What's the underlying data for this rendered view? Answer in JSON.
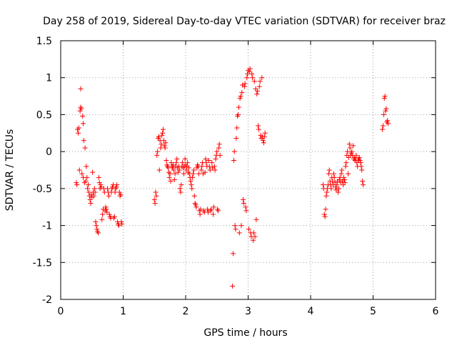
{
  "chart_data": {
    "type": "scatter",
    "title": "Day 258 of 2019, Sidereal Day-to-day VTEC variation (SDTVAR) for receiver braz",
    "xlabel": "GPS time / hours",
    "ylabel": "SDTVAR / TECUs",
    "xlim": [
      0,
      6
    ],
    "ylim": [
      -2,
      1.5
    ],
    "x_ticks": [
      0,
      1,
      2,
      3,
      4,
      5,
      6
    ],
    "x_tick_labels": [
      "0",
      "1",
      "2",
      "3",
      "4",
      "5",
      "6"
    ],
    "y_ticks": [
      1.5,
      1,
      0.5,
      0,
      -0.5,
      -1,
      -1.5,
      -2
    ],
    "y_tick_labels": [
      "1.5",
      "1",
      "0.5",
      "0",
      "-0.5",
      "-1",
      "-1.5",
      "-2"
    ],
    "grid": true,
    "marker": "+",
    "color": "#ff0000",
    "series": [
      {
        "name": "SDTVAR",
        "points": [
          [
            0.25,
            -0.42
          ],
          [
            0.26,
            -0.45
          ],
          [
            0.27,
            0.3
          ],
          [
            0.28,
            0.25
          ],
          [
            0.29,
            0.32
          ],
          [
            0.3,
            -0.25
          ],
          [
            0.31,
            0.55
          ],
          [
            0.32,
            0.6
          ],
          [
            0.32,
            0.85
          ],
          [
            0.33,
            0.58
          ],
          [
            0.34,
            -0.3
          ],
          [
            0.35,
            0.48
          ],
          [
            0.36,
            0.38
          ],
          [
            0.36,
            -0.35
          ],
          [
            0.37,
            0.15
          ],
          [
            0.38,
            -0.42
          ],
          [
            0.39,
            0.05
          ],
          [
            0.4,
            -0.4
          ],
          [
            0.41,
            -0.2
          ],
          [
            0.42,
            -0.35
          ],
          [
            0.43,
            -0.5
          ],
          [
            0.44,
            -0.45
          ],
          [
            0.45,
            -0.55
          ],
          [
            0.46,
            -0.6
          ],
          [
            0.47,
            -0.65
          ],
          [
            0.48,
            -0.7
          ],
          [
            0.49,
            -0.58
          ],
          [
            0.5,
            -0.62
          ],
          [
            0.51,
            -0.28
          ],
          [
            0.52,
            -0.55
          ],
          [
            0.53,
            -0.6
          ],
          [
            0.54,
            -0.5
          ],
          [
            0.55,
            -0.55
          ],
          [
            0.56,
            -0.95
          ],
          [
            0.57,
            -1.0
          ],
          [
            0.58,
            -1.05
          ],
          [
            0.59,
            -1.08
          ],
          [
            0.6,
            -1.1
          ],
          [
            0.61,
            -0.35
          ],
          [
            0.62,
            -0.42
          ],
          [
            0.63,
            -0.5
          ],
          [
            0.64,
            -0.45
          ],
          [
            0.65,
            -0.48
          ],
          [
            0.66,
            -0.92
          ],
          [
            0.67,
            -0.85
          ],
          [
            0.68,
            -0.78
          ],
          [
            0.69,
            -0.5
          ],
          [
            0.7,
            -0.55
          ],
          [
            0.71,
            -0.8
          ],
          [
            0.72,
            -0.75
          ],
          [
            0.73,
            -0.78
          ],
          [
            0.74,
            -0.82
          ],
          [
            0.75,
            -0.5
          ],
          [
            0.76,
            -0.55
          ],
          [
            0.77,
            -0.6
          ],
          [
            0.78,
            -0.85
          ],
          [
            0.79,
            -0.88
          ],
          [
            0.8,
            -0.9
          ],
          [
            0.81,
            -0.55
          ],
          [
            0.82,
            -0.5
          ],
          [
            0.83,
            -0.48
          ],
          [
            0.84,
            -0.45
          ],
          [
            0.85,
            -0.9
          ],
          [
            0.86,
            -0.88
          ],
          [
            0.87,
            -0.55
          ],
          [
            0.88,
            -0.5
          ],
          [
            0.89,
            -0.48
          ],
          [
            0.9,
            -0.45
          ],
          [
            0.91,
            -0.95
          ],
          [
            0.92,
            -0.98
          ],
          [
            0.93,
            -1.0
          ],
          [
            0.94,
            -0.55
          ],
          [
            0.95,
            -0.6
          ],
          [
            0.96,
            -0.58
          ],
          [
            0.97,
            -0.95
          ],
          [
            0.98,
            -0.98
          ],
          [
            1.5,
            -0.65
          ],
          [
            1.51,
            -0.7
          ],
          [
            1.52,
            -0.55
          ],
          [
            1.53,
            -0.6
          ],
          [
            1.54,
            -0.05
          ],
          [
            1.55,
            0.0
          ],
          [
            1.56,
            0.18
          ],
          [
            1.57,
            0.2
          ],
          [
            1.58,
            -0.25
          ],
          [
            1.59,
            0.15
          ],
          [
            1.6,
            0.05
          ],
          [
            1.61,
            0.1
          ],
          [
            1.62,
            0.22
          ],
          [
            1.63,
            0.25
          ],
          [
            1.64,
            0.3
          ],
          [
            1.65,
            0.15
          ],
          [
            1.66,
            0.08
          ],
          [
            1.67,
            0.05
          ],
          [
            1.68,
            0.12
          ],
          [
            1.69,
            -0.12
          ],
          [
            1.7,
            -0.18
          ],
          [
            1.71,
            -0.2
          ],
          [
            1.72,
            -0.22
          ],
          [
            1.73,
            -0.28
          ],
          [
            1.74,
            -0.35
          ],
          [
            1.75,
            -0.3
          ],
          [
            1.76,
            -0.4
          ],
          [
            1.77,
            -0.15
          ],
          [
            1.78,
            -0.2
          ],
          [
            1.79,
            -0.22
          ],
          [
            1.8,
            -0.18
          ],
          [
            1.81,
            -0.25
          ],
          [
            1.82,
            -0.38
          ],
          [
            1.83,
            -0.3
          ],
          [
            1.84,
            -0.2
          ],
          [
            1.85,
            -0.15
          ],
          [
            1.86,
            -0.1
          ],
          [
            1.87,
            -0.22
          ],
          [
            1.88,
            -0.28
          ],
          [
            1.89,
            -0.2
          ],
          [
            1.9,
            -0.25
          ],
          [
            1.91,
            -0.5
          ],
          [
            1.92,
            -0.55
          ],
          [
            1.93,
            -0.45
          ],
          [
            1.94,
            -0.2
          ],
          [
            1.95,
            -0.15
          ],
          [
            1.96,
            -0.22
          ],
          [
            1.97,
            -0.3
          ],
          [
            1.98,
            -0.2
          ],
          [
            1.99,
            -0.1
          ],
          [
            2.0,
            -0.18
          ],
          [
            2.01,
            -0.25
          ],
          [
            2.02,
            -0.2
          ],
          [
            2.03,
            -0.15
          ],
          [
            2.04,
            -0.28
          ],
          [
            2.05,
            -0.22
          ],
          [
            2.06,
            -0.3
          ],
          [
            2.07,
            -0.35
          ],
          [
            2.08,
            -0.4
          ],
          [
            2.09,
            -0.45
          ],
          [
            2.1,
            -0.5
          ],
          [
            2.11,
            -0.35
          ],
          [
            2.12,
            -0.3
          ],
          [
            2.13,
            -0.25
          ],
          [
            2.14,
            -0.6
          ],
          [
            2.15,
            -0.7
          ],
          [
            2.16,
            -0.72
          ],
          [
            2.17,
            -0.75
          ],
          [
            2.18,
            -0.22
          ],
          [
            2.19,
            -0.18
          ],
          [
            2.2,
            -0.2
          ],
          [
            2.21,
            -0.3
          ],
          [
            2.22,
            -0.8
          ],
          [
            2.23,
            -0.85
          ],
          [
            2.24,
            -0.78
          ],
          [
            2.25,
            -0.25
          ],
          [
            2.26,
            -0.2
          ],
          [
            2.27,
            -0.15
          ],
          [
            2.28,
            -0.3
          ],
          [
            2.29,
            -0.8
          ],
          [
            2.3,
            -0.82
          ],
          [
            2.31,
            -0.28
          ],
          [
            2.32,
            -0.1
          ],
          [
            2.33,
            -0.15
          ],
          [
            2.34,
            -0.2
          ],
          [
            2.35,
            -0.78
          ],
          [
            2.36,
            -0.82
          ],
          [
            2.37,
            -0.12
          ],
          [
            2.38,
            -0.2
          ],
          [
            2.39,
            -0.25
          ],
          [
            2.4,
            -0.8
          ],
          [
            2.41,
            -0.78
          ],
          [
            2.42,
            -0.15
          ],
          [
            2.43,
            -0.22
          ],
          [
            2.44,
            -0.85
          ],
          [
            2.45,
            -0.75
          ],
          [
            2.46,
            -0.2
          ],
          [
            2.47,
            -0.25
          ],
          [
            2.48,
            -0.1
          ],
          [
            2.49,
            -0.05
          ],
          [
            2.5,
            0.0
          ],
          [
            2.51,
            -0.78
          ],
          [
            2.52,
            -0.8
          ],
          [
            2.53,
            0.05
          ],
          [
            2.54,
            0.1
          ],
          [
            2.55,
            -0.05
          ],
          [
            2.75,
            -1.82
          ],
          [
            2.76,
            -1.38
          ],
          [
            2.77,
            -0.12
          ],
          [
            2.78,
            0.0
          ],
          [
            2.79,
            -1.0
          ],
          [
            2.8,
            -1.05
          ],
          [
            2.81,
            0.18
          ],
          [
            2.82,
            0.32
          ],
          [
            2.83,
            0.48
          ],
          [
            2.84,
            0.5
          ],
          [
            2.85,
            0.6
          ],
          [
            2.86,
            -1.1
          ],
          [
            2.87,
            0.72
          ],
          [
            2.88,
            0.75
          ],
          [
            2.89,
            -1.0
          ],
          [
            2.9,
            0.8
          ],
          [
            2.91,
            0.9
          ],
          [
            2.92,
            -0.65
          ],
          [
            2.93,
            -0.7
          ],
          [
            2.94,
            0.88
          ],
          [
            2.95,
            0.92
          ],
          [
            2.96,
            -0.75
          ],
          [
            2.97,
            -0.8
          ],
          [
            2.98,
            1.0
          ],
          [
            2.99,
            1.05
          ],
          [
            3.0,
            1.1
          ],
          [
            3.01,
            -1.05
          ],
          [
            3.02,
            1.08
          ],
          [
            3.03,
            1.12
          ],
          [
            3.04,
            -1.1
          ],
          [
            3.05,
            -1.15
          ],
          [
            3.06,
            1.05
          ],
          [
            3.07,
            1.0
          ],
          [
            3.08,
            -1.2
          ],
          [
            3.09,
            -1.1
          ],
          [
            3.1,
            0.95
          ],
          [
            3.11,
            -1.15
          ],
          [
            3.12,
            0.85
          ],
          [
            3.13,
            -0.92
          ],
          [
            3.14,
            0.78
          ],
          [
            3.15,
            0.82
          ],
          [
            3.16,
            0.35
          ],
          [
            3.17,
            0.3
          ],
          [
            3.18,
            0.88
          ],
          [
            3.19,
            0.95
          ],
          [
            3.2,
            0.22
          ],
          [
            3.21,
            0.18
          ],
          [
            3.22,
            1.0
          ],
          [
            3.23,
            0.2
          ],
          [
            3.24,
            0.15
          ],
          [
            3.25,
            0.12
          ],
          [
            3.26,
            0.2
          ],
          [
            3.27,
            0.25
          ],
          [
            4.2,
            -0.45
          ],
          [
            4.21,
            -0.5
          ],
          [
            4.22,
            -0.85
          ],
          [
            4.23,
            -0.88
          ],
          [
            4.24,
            -0.78
          ],
          [
            4.25,
            -0.6
          ],
          [
            4.26,
            -0.55
          ],
          [
            4.27,
            -0.5
          ],
          [
            4.28,
            -0.45
          ],
          [
            4.29,
            -0.3
          ],
          [
            4.3,
            -0.25
          ],
          [
            4.31,
            -0.4
          ],
          [
            4.32,
            -0.45
          ],
          [
            4.33,
            -0.5
          ],
          [
            4.34,
            -0.35
          ],
          [
            4.35,
            -0.4
          ],
          [
            4.36,
            -0.45
          ],
          [
            4.37,
            -0.3
          ],
          [
            4.38,
            -0.35
          ],
          [
            4.39,
            -0.42
          ],
          [
            4.4,
            -0.48
          ],
          [
            4.41,
            -0.52
          ],
          [
            4.42,
            -0.45
          ],
          [
            4.43,
            -0.4
          ],
          [
            4.44,
            -0.55
          ],
          [
            4.45,
            -0.5
          ],
          [
            4.46,
            -0.38
          ],
          [
            4.47,
            -0.35
          ],
          [
            4.48,
            -0.42
          ],
          [
            4.49,
            -0.3
          ],
          [
            4.5,
            -0.25
          ],
          [
            4.51,
            -0.4
          ],
          [
            4.52,
            -0.45
          ],
          [
            4.53,
            -0.35
          ],
          [
            4.54,
            -0.38
          ],
          [
            4.55,
            -0.42
          ],
          [
            4.56,
            -0.2
          ],
          [
            4.57,
            -0.15
          ],
          [
            4.58,
            -0.05
          ],
          [
            4.59,
            0.0
          ],
          [
            4.6,
            -0.3
          ],
          [
            4.61,
            -0.08
          ],
          [
            4.62,
            0.1
          ],
          [
            4.63,
            0.05
          ],
          [
            4.64,
            -0.05
          ],
          [
            4.65,
            -0.02
          ],
          [
            4.66,
            0.0
          ],
          [
            4.67,
            -0.05
          ],
          [
            4.68,
            0.08
          ],
          [
            4.69,
            -0.1
          ],
          [
            4.7,
            -0.08
          ],
          [
            4.71,
            -0.12
          ],
          [
            4.72,
            -0.1
          ],
          [
            4.73,
            -0.05
          ],
          [
            4.74,
            -0.15
          ],
          [
            4.75,
            -0.2
          ],
          [
            4.76,
            -0.12
          ],
          [
            4.77,
            -0.1
          ],
          [
            4.78,
            -0.08
          ],
          [
            4.79,
            -0.12
          ],
          [
            4.8,
            -0.15
          ],
          [
            4.81,
            -0.2
          ],
          [
            4.82,
            -0.25
          ],
          [
            4.83,
            -0.4
          ],
          [
            4.84,
            -0.45
          ],
          [
            5.15,
            0.3
          ],
          [
            5.16,
            0.35
          ],
          [
            5.17,
            0.5
          ],
          [
            5.18,
            0.72
          ],
          [
            5.19,
            0.75
          ],
          [
            5.2,
            0.55
          ],
          [
            5.21,
            0.58
          ],
          [
            5.22,
            0.4
          ],
          [
            5.23,
            0.42
          ],
          [
            5.24,
            0.38
          ]
        ]
      }
    ]
  }
}
